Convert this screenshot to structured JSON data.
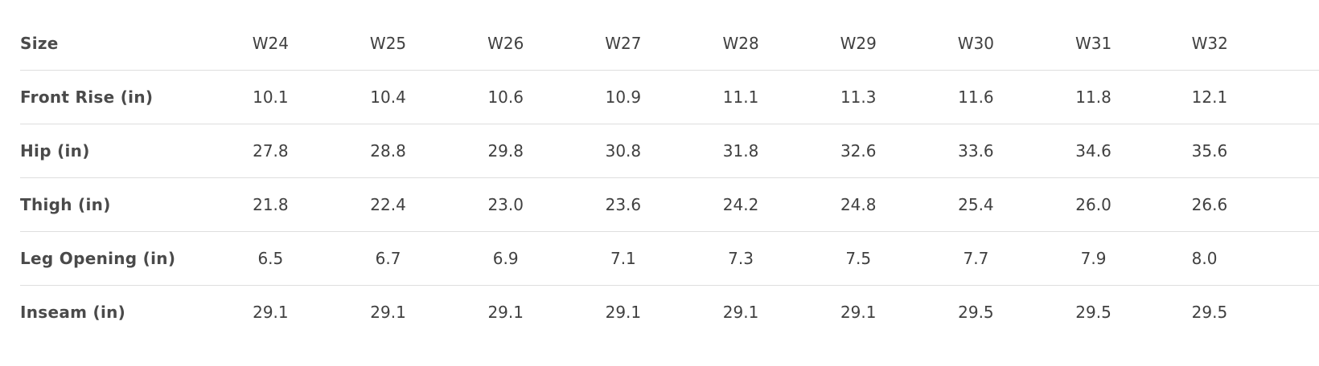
{
  "size_chart": {
    "columns": [
      "W24",
      "W25",
      "W26",
      "W27",
      "W28",
      "W29",
      "W30",
      "W31",
      "W32"
    ],
    "rows": [
      {
        "label": "Size",
        "values": [
          "W24",
          "W25",
          "W26",
          "W27",
          "W28",
          "W29",
          "W30",
          "W31",
          "W32"
        ]
      },
      {
        "label": "Front Rise (in)",
        "values": [
          "10.1",
          "10.4",
          "10.6",
          "10.9",
          "11.1",
          "11.3",
          "11.6",
          "11.8",
          "12.1"
        ]
      },
      {
        "label": "Hip (in)",
        "values": [
          "27.8",
          "28.8",
          "29.8",
          "30.8",
          "31.8",
          "32.6",
          "33.6",
          "34.6",
          "35.6"
        ]
      },
      {
        "label": "Thigh (in)",
        "values": [
          "21.8",
          "22.4",
          "23.0",
          "23.6",
          "24.2",
          "24.8",
          "25.4",
          "26.0",
          "26.6"
        ]
      },
      {
        "label": "Leg Opening (in)",
        "values": [
          "6.5",
          "6.7",
          "6.9",
          "7.1",
          "7.3",
          "7.5",
          "7.7",
          "7.9",
          "8.0"
        ]
      },
      {
        "label": "Inseam (in)",
        "values": [
          "29.1",
          "29.1",
          "29.1",
          "29.1",
          "29.1",
          "29.1",
          "29.5",
          "29.5",
          "29.5"
        ]
      }
    ]
  }
}
